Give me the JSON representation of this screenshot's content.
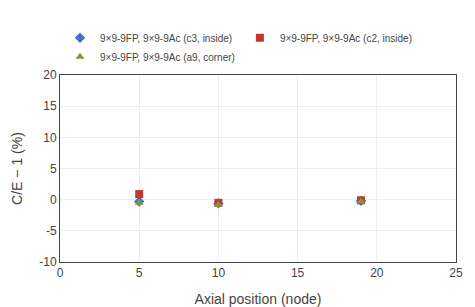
{
  "chart_data": {
    "type": "scatter",
    "xlabel": "Axial position (node)",
    "ylabel": "C/E − 1 (%)",
    "series": [
      {
        "name": "9×9-9FP, 9×9-9Ac (c3, inside)",
        "color": "#4472c4",
        "marker": "diamond",
        "x": [
          5,
          10,
          19
        ],
        "values": [
          -0.3,
          -0.6,
          -0.2
        ]
      },
      {
        "name": "9×9-9FP, 9×9-9Ac (c2, inside)",
        "color": "#c0392b",
        "marker": "square",
        "x": [
          5,
          10,
          19
        ],
        "values": [
          0.9,
          -0.5,
          -0.1
        ]
      },
      {
        "name": "9×9-9FP, 9×9-9Ac (a9, corner)",
        "color": "#7f9a3e",
        "marker": "triangle-up",
        "x": [
          5,
          10,
          19
        ],
        "values": [
          -0.5,
          -0.8,
          -0.3
        ]
      }
    ],
    "xlim": [
      0,
      25
    ],
    "ylim": [
      -10,
      20
    ],
    "xticks": [
      0,
      5,
      10,
      15,
      20,
      25
    ],
    "yticks": [
      -10,
      -5,
      0,
      5,
      10,
      15,
      20
    ],
    "grid": true,
    "legend": "top"
  }
}
